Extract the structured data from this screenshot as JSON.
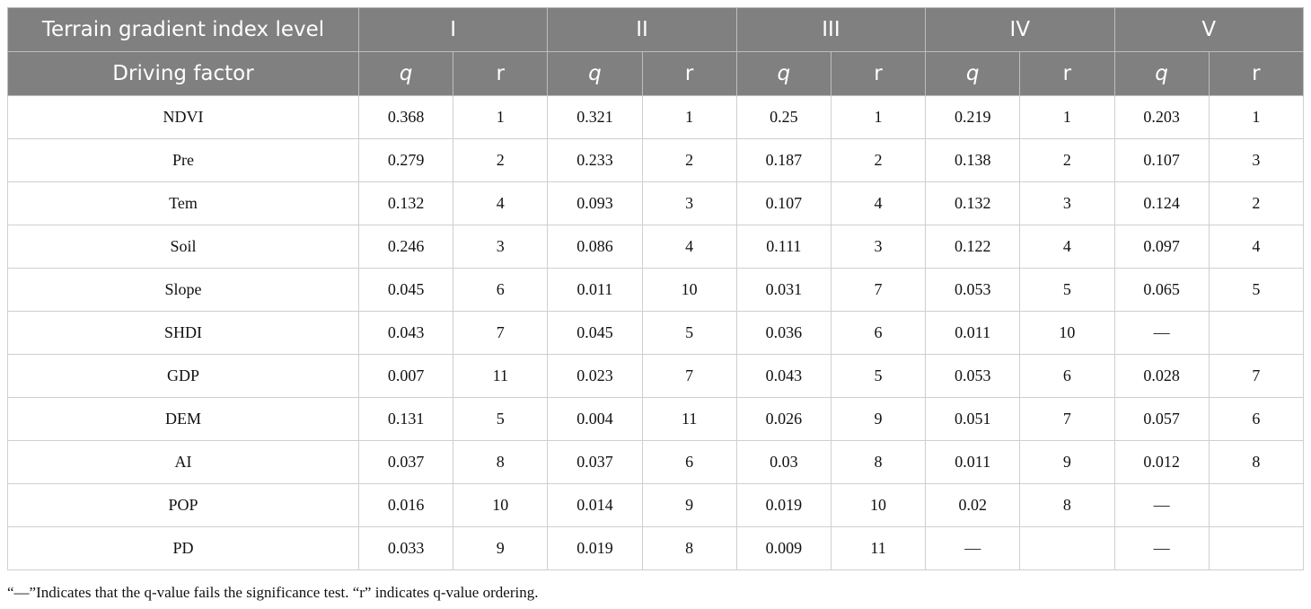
{
  "table": {
    "header": {
      "level_label": "Terrain gradient index level",
      "levels": [
        "I",
        "II",
        "III",
        "IV",
        "V"
      ],
      "factor_label": "Driving factor",
      "sub": [
        "q",
        "r"
      ]
    },
    "rows": [
      {
        "factor": "NDVI",
        "cells": [
          "0.368",
          "1",
          "0.321",
          "1",
          "0.25",
          "1",
          "0.219",
          "1",
          "0.203",
          "1"
        ]
      },
      {
        "factor": "Pre",
        "cells": [
          "0.279",
          "2",
          "0.233",
          "2",
          "0.187",
          "2",
          "0.138",
          "2",
          "0.107",
          "3"
        ]
      },
      {
        "factor": "Tem",
        "cells": [
          "0.132",
          "4",
          "0.093",
          "3",
          "0.107",
          "4",
          "0.132",
          "3",
          "0.124",
          "2"
        ]
      },
      {
        "factor": "Soil",
        "cells": [
          "0.246",
          "3",
          "0.086",
          "4",
          "0.111",
          "3",
          "0.122",
          "4",
          "0.097",
          "4"
        ]
      },
      {
        "factor": "Slope",
        "cells": [
          "0.045",
          "6",
          "0.011",
          "10",
          "0.031",
          "7",
          "0.053",
          "5",
          "0.065",
          "5"
        ]
      },
      {
        "factor": "SHDI",
        "cells": [
          "0.043",
          "7",
          "0.045",
          "5",
          "0.036",
          "6",
          "0.011",
          "10",
          "—",
          null
        ]
      },
      {
        "factor": "GDP",
        "cells": [
          "0.007",
          "11",
          "0.023",
          "7",
          "0.043",
          "5",
          "0.053",
          "6",
          "0.028",
          "7"
        ]
      },
      {
        "factor": "DEM",
        "cells": [
          "0.131",
          "5",
          "0.004",
          "11",
          "0.026",
          "9",
          "0.051",
          "7",
          "0.057",
          "6"
        ]
      },
      {
        "factor": "AI",
        "cells": [
          "0.037",
          "8",
          "0.037",
          "6",
          "0.03",
          "8",
          "0.011",
          "9",
          "0.012",
          "8"
        ]
      },
      {
        "factor": "POP",
        "cells": [
          "0.016",
          "10",
          "0.014",
          "9",
          "0.019",
          "10",
          "0.02",
          "8",
          "—",
          null
        ]
      },
      {
        "factor": "PD",
        "cells": [
          "0.033",
          "9",
          "0.019",
          "8",
          "0.009",
          "11",
          "—",
          null,
          "—",
          null
        ]
      }
    ]
  },
  "footnote": "“—”Indicates that the q-value fails the significance test. “r” indicates q-value ordering."
}
